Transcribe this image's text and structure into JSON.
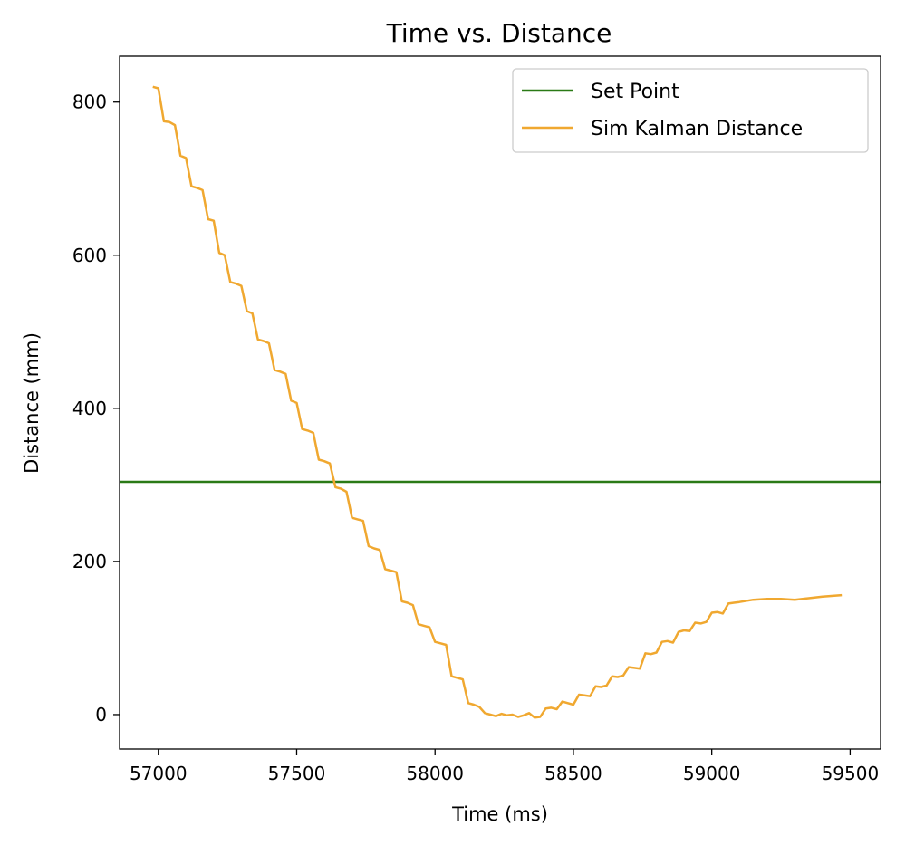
{
  "chart_data": {
    "type": "line",
    "title": "Time vs. Distance",
    "xlabel": "Time (ms)",
    "ylabel": "Distance (mm)",
    "xlim": [
      56860,
      59610
    ],
    "ylim": [
      -45,
      860
    ],
    "xticks": [
      57000,
      57500,
      58000,
      58500,
      59000,
      59500
    ],
    "yticks": [
      0,
      200,
      400,
      600,
      800
    ],
    "grid": false,
    "legend": "top-right",
    "series": [
      {
        "name": "Set Point",
        "color": "#2a7a16",
        "kind": "hline",
        "y": 304
      },
      {
        "name": "Sim Kalman Distance",
        "color": "#f0a830",
        "x": [
          56980,
          57000,
          57020,
          57040,
          57060,
          57080,
          57100,
          57120,
          57140,
          57160,
          57180,
          57200,
          57220,
          57240,
          57260,
          57280,
          57300,
          57320,
          57340,
          57360,
          57380,
          57400,
          57420,
          57440,
          57460,
          57480,
          57500,
          57520,
          57540,
          57560,
          57580,
          57600,
          57620,
          57640,
          57660,
          57680,
          57700,
          57720,
          57740,
          57760,
          57780,
          57800,
          57820,
          57840,
          57860,
          57880,
          57900,
          57920,
          57940,
          57960,
          57980,
          58000,
          58020,
          58040,
          58060,
          58080,
          58100,
          58120,
          58140,
          58160,
          58180,
          58200,
          58220,
          58240,
          58260,
          58280,
          58300,
          58320,
          58340,
          58360,
          58380,
          58400,
          58420,
          58440,
          58460,
          58480,
          58500,
          58520,
          58540,
          58560,
          58580,
          58600,
          58620,
          58640,
          58660,
          58680,
          58700,
          58720,
          58740,
          58760,
          58780,
          58800,
          58820,
          58840,
          58860,
          58880,
          58900,
          58920,
          58940,
          58960,
          58980,
          59000,
          59020,
          59040,
          59060,
          59080,
          59100,
          59150,
          59200,
          59250,
          59300,
          59350,
          59400,
          59470
        ],
        "y": [
          820,
          818,
          775,
          774,
          770,
          730,
          727,
          690,
          688,
          685,
          647,
          645,
          603,
          600,
          565,
          563,
          560,
          527,
          524,
          490,
          488,
          485,
          450,
          448,
          445,
          410,
          407,
          373,
          371,
          368,
          333,
          331,
          328,
          297,
          295,
          291,
          257,
          255,
          253,
          220,
          217,
          215,
          190,
          188,
          186,
          148,
          146,
          143,
          118,
          116,
          114,
          95,
          93,
          91,
          50,
          48,
          46,
          15,
          13,
          10,
          2,
          0,
          -2,
          1,
          -1,
          0,
          -3,
          -1,
          2,
          -4,
          -3,
          8,
          9,
          7,
          17,
          15,
          13,
          26,
          25,
          24,
          37,
          36,
          38,
          50,
          49,
          51,
          62,
          61,
          60,
          80,
          79,
          81,
          95,
          96,
          94,
          108,
          110,
          109,
          120,
          119,
          121,
          133,
          134,
          132,
          145,
          146,
          147,
          150,
          151,
          151,
          150,
          152,
          154,
          156
        ]
      }
    ]
  }
}
